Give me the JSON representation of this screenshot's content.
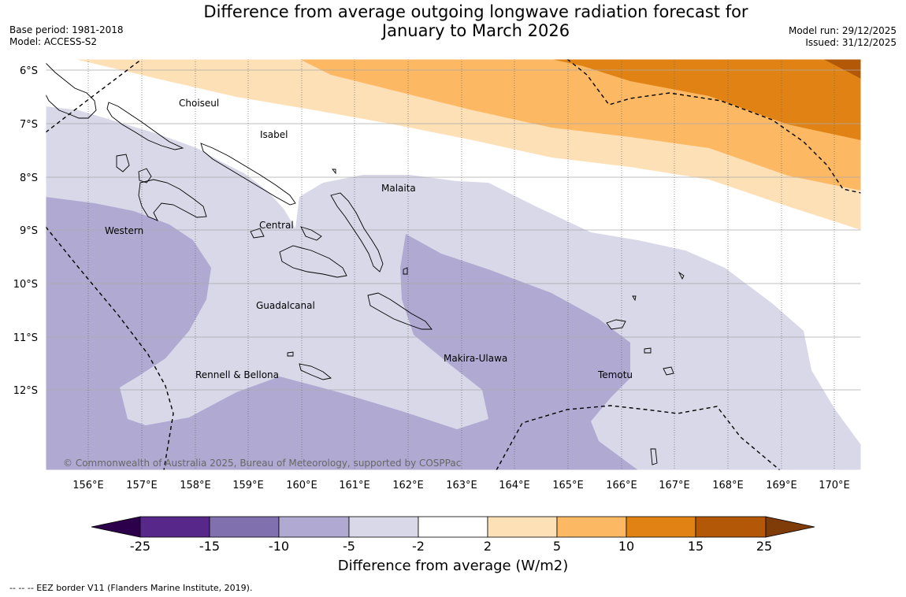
{
  "title_line1": "Difference from average outgoing longwave radiation forecast for",
  "title_line2": "January to March 2026",
  "base_period": "Base period: 1981-2018",
  "model": "Model: ACCESS-S2",
  "model_run": "Model run: 29/12/2025",
  "issued": "Issued: 31/12/2025",
  "lat_labels": [
    "6°S",
    "7°S",
    "8°S",
    "9°S",
    "10°S",
    "11°S",
    "12°S"
  ],
  "lon_labels": [
    "156°E",
    "157°E",
    "158°E",
    "159°E",
    "160°E",
    "161°E",
    "162°E",
    "163°E",
    "164°E",
    "165°E",
    "166°E",
    "167°E",
    "168°E",
    "169°E",
    "170°E"
  ],
  "regions": [
    "Choiseul",
    "Isabel",
    "Malaita",
    "Western",
    "Central",
    "Guadalcanal",
    "Makira-Ulawa",
    "Rennell & Bellona",
    "Temotu"
  ],
  "copyright": "© Commonwealth of Australia 2025, Bureau of Meteorology, supported by COSPPac",
  "colorbar": {
    "ticks": [
      "-25",
      "-15",
      "-10",
      "-5",
      "-2",
      "2",
      "5",
      "10",
      "15",
      "25"
    ],
    "colors": [
      "#58278a",
      "#8070ad",
      "#b0aad2",
      "#d8d8e9",
      "#ffffff",
      "#fee0b6",
      "#fdb863",
      "#e08214",
      "#b35806"
    ],
    "under_color": "#2d004b",
    "over_color": "#7f3b08",
    "title": "Difference from average (W/m2)"
  },
  "footer": "--  --  -- EEZ border V11 (Flanders Marine Institute, 2019)."
}
